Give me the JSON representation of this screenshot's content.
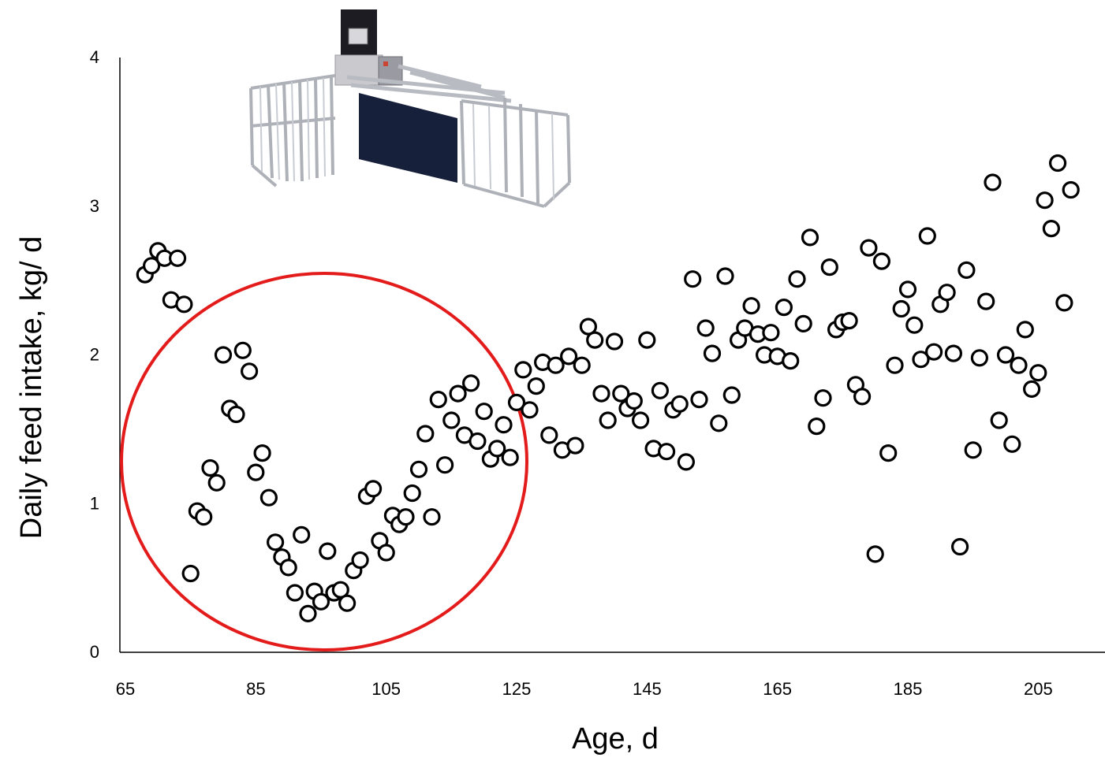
{
  "chart_data": {
    "type": "scatter",
    "xlabel": "Age, d",
    "ylabel": "Daily feed intake, kg/ d",
    "xlim": [
      65,
      215
    ],
    "ylim": [
      0,
      4
    ],
    "x_ticks": [
      "65",
      "85",
      "105",
      "125",
      "145",
      "165",
      "185",
      "205"
    ],
    "y_ticks": [
      "0",
      "1",
      "2",
      "3",
      "4"
    ],
    "grid": false,
    "marker": "open-circle",
    "colors": {
      "marker_stroke": "#000000",
      "highlight_circle": "#e31b1b",
      "axis": "#000000"
    },
    "annotations": [
      {
        "kind": "highlight-ellipse",
        "color": "#e31b1b",
        "x_range": [
          65,
          125
        ],
        "y_range": [
          0,
          2.55
        ]
      },
      {
        "kind": "inset-image",
        "subject": "feeding-station-pen-illustration"
      }
    ],
    "points": [
      [
        68,
        2.54
      ],
      [
        69,
        2.6
      ],
      [
        70,
        2.7
      ],
      [
        71,
        2.65
      ],
      [
        72,
        2.37
      ],
      [
        73,
        2.65
      ],
      [
        74,
        2.34
      ],
      [
        75,
        0.53
      ],
      [
        76,
        0.95
      ],
      [
        77,
        0.91
      ],
      [
        78,
        1.24
      ],
      [
        79,
        1.14
      ],
      [
        80,
        2.0
      ],
      [
        81,
        1.64
      ],
      [
        82,
        1.6
      ],
      [
        83,
        2.03
      ],
      [
        84,
        1.89
      ],
      [
        85,
        1.21
      ],
      [
        86,
        1.34
      ],
      [
        87,
        1.04
      ],
      [
        88,
        0.74
      ],
      [
        89,
        0.64
      ],
      [
        90,
        0.57
      ],
      [
        91,
        0.4
      ],
      [
        92,
        0.79
      ],
      [
        93,
        0.26
      ],
      [
        94,
        0.41
      ],
      [
        95,
        0.34
      ],
      [
        96,
        0.68
      ],
      [
        97,
        0.4
      ],
      [
        98,
        0.42
      ],
      [
        99,
        0.33
      ],
      [
        100,
        0.55
      ],
      [
        101,
        0.62
      ],
      [
        102,
        1.05
      ],
      [
        103,
        1.1
      ],
      [
        104,
        0.75
      ],
      [
        105,
        0.67
      ],
      [
        106,
        0.92
      ],
      [
        107,
        0.86
      ],
      [
        108,
        0.91
      ],
      [
        109,
        1.07
      ],
      [
        110,
        1.23
      ],
      [
        111,
        1.47
      ],
      [
        112,
        0.91
      ],
      [
        113,
        1.7
      ],
      [
        114,
        1.26
      ],
      [
        115,
        1.56
      ],
      [
        116,
        1.74
      ],
      [
        117,
        1.46
      ],
      [
        118,
        1.81
      ],
      [
        119,
        1.42
      ],
      [
        120,
        1.62
      ],
      [
        121,
        1.3
      ],
      [
        122,
        1.37
      ],
      [
        123,
        1.53
      ],
      [
        124,
        1.31
      ],
      [
        125,
        1.68
      ],
      [
        126,
        1.9
      ],
      [
        127,
        1.63
      ],
      [
        128,
        1.79
      ],
      [
        129,
        1.95
      ],
      [
        130,
        1.46
      ],
      [
        131,
        1.93
      ],
      [
        132,
        1.36
      ],
      [
        133,
        1.99
      ],
      [
        134,
        1.39
      ],
      [
        135,
        1.93
      ],
      [
        136,
        2.19
      ],
      [
        137,
        2.1
      ],
      [
        138,
        1.74
      ],
      [
        139,
        1.56
      ],
      [
        140,
        2.09
      ],
      [
        141,
        1.74
      ],
      [
        142,
        1.64
      ],
      [
        143,
        1.69
      ],
      [
        144,
        1.56
      ],
      [
        145,
        2.1
      ],
      [
        146,
        1.37
      ],
      [
        147,
        1.76
      ],
      [
        148,
        1.35
      ],
      [
        149,
        1.63
      ],
      [
        150,
        1.67
      ],
      [
        151,
        1.28
      ],
      [
        152,
        2.51
      ],
      [
        153,
        1.7
      ],
      [
        154,
        2.18
      ],
      [
        155,
        2.01
      ],
      [
        156,
        1.54
      ],
      [
        157,
        2.53
      ],
      [
        158,
        1.73
      ],
      [
        159,
        2.1
      ],
      [
        160,
        2.18
      ],
      [
        161,
        2.33
      ],
      [
        162,
        2.14
      ],
      [
        163,
        2.0
      ],
      [
        164,
        2.15
      ],
      [
        165,
        1.99
      ],
      [
        166,
        2.32
      ],
      [
        167,
        1.96
      ],
      [
        168,
        2.51
      ],
      [
        169,
        2.21
      ],
      [
        170,
        2.79
      ],
      [
        171,
        1.52
      ],
      [
        172,
        1.71
      ],
      [
        173,
        2.59
      ],
      [
        174,
        2.17
      ],
      [
        175,
        2.22
      ],
      [
        176,
        2.23
      ],
      [
        177,
        1.8
      ],
      [
        178,
        1.72
      ],
      [
        179,
        2.72
      ],
      [
        180,
        0.66
      ],
      [
        181,
        2.63
      ],
      [
        182,
        1.34
      ],
      [
        183,
        1.93
      ],
      [
        184,
        2.31
      ],
      [
        185,
        2.44
      ],
      [
        186,
        2.2
      ],
      [
        187,
        1.97
      ],
      [
        188,
        2.8
      ],
      [
        189,
        2.02
      ],
      [
        190,
        2.34
      ],
      [
        191,
        2.42
      ],
      [
        192,
        2.01
      ],
      [
        193,
        0.71
      ],
      [
        194,
        2.57
      ],
      [
        195,
        1.36
      ],
      [
        196,
        1.98
      ],
      [
        197,
        2.36
      ],
      [
        198,
        3.16
      ],
      [
        199,
        1.56
      ],
      [
        200,
        2.0
      ],
      [
        201,
        1.4
      ],
      [
        202,
        1.93
      ],
      [
        203,
        2.17
      ],
      [
        204,
        1.77
      ],
      [
        205,
        1.88
      ],
      [
        206,
        3.04
      ],
      [
        207,
        2.85
      ],
      [
        208,
        3.29
      ],
      [
        209,
        2.35
      ],
      [
        210,
        3.11
      ]
    ]
  }
}
